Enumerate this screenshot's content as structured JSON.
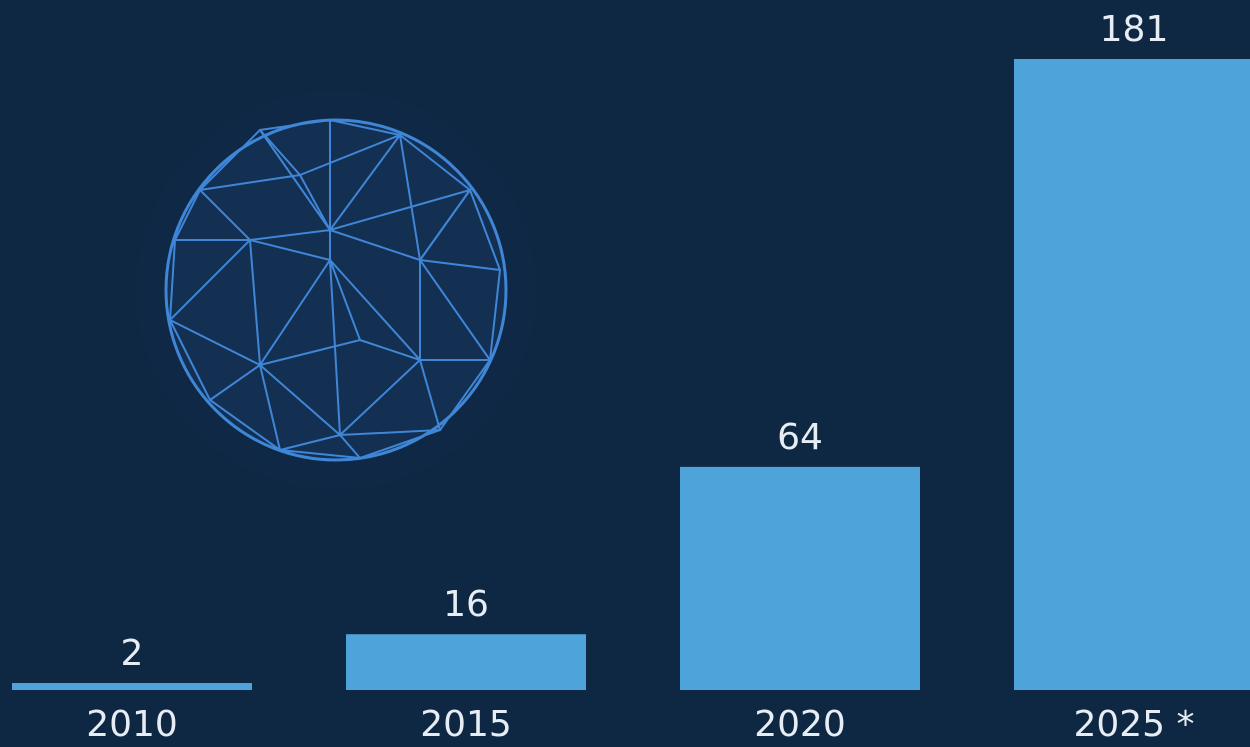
{
  "chart_data": {
    "type": "bar",
    "categories": [
      "2010",
      "2015",
      "2020",
      "2025 *"
    ],
    "values": [
      2,
      16,
      64,
      181
    ],
    "color": "#4ea3da"
  }
}
